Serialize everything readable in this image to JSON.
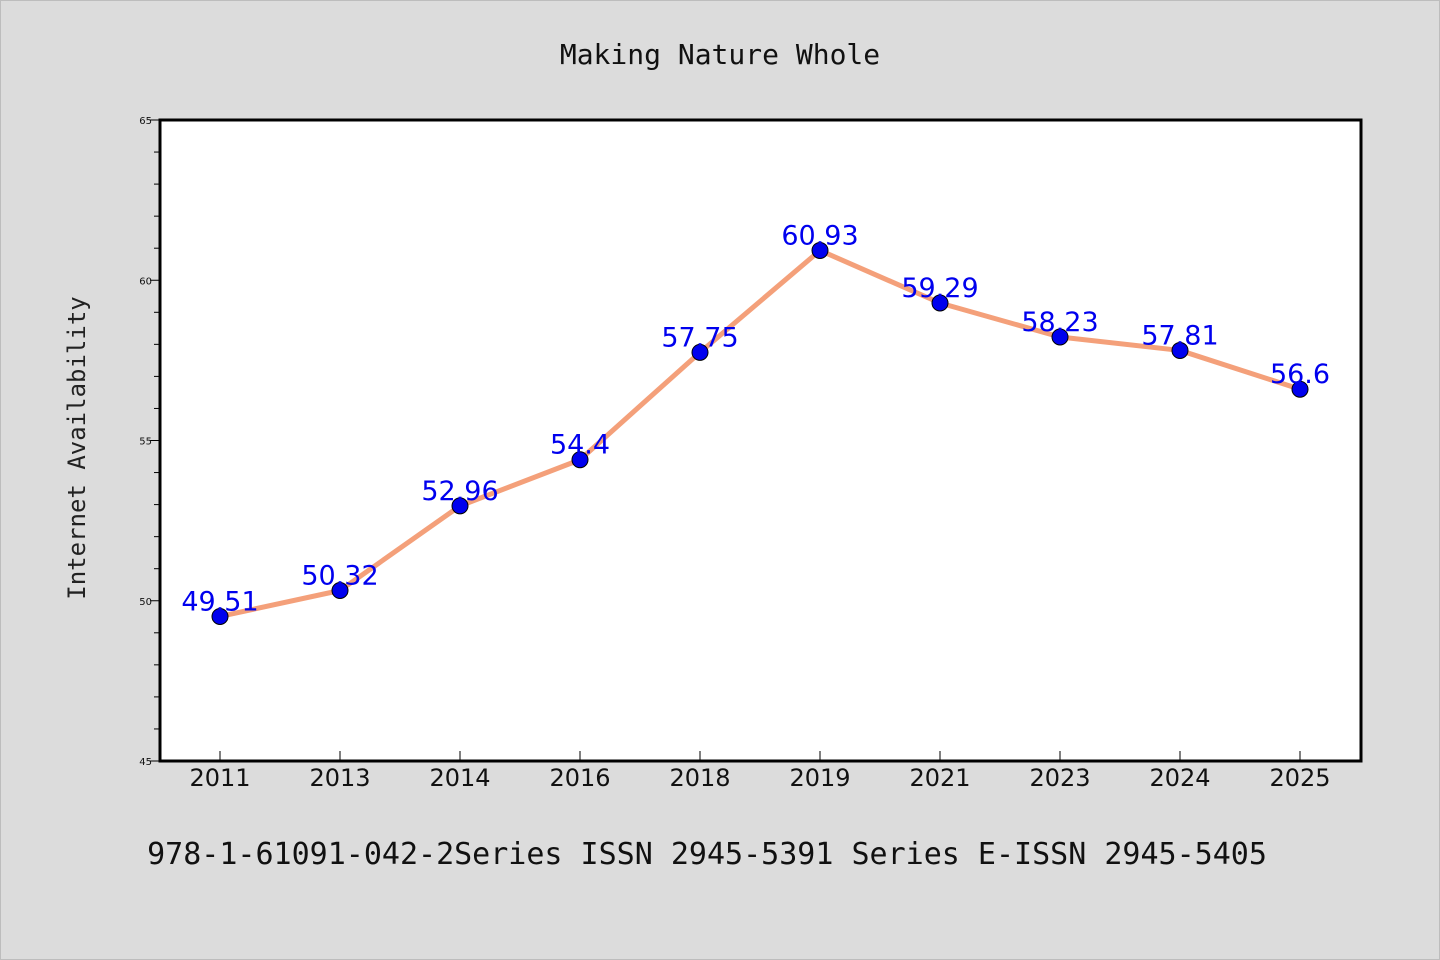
{
  "chart_data": {
    "type": "line",
    "title": "Making Nature Whole",
    "xlabel": "",
    "ylabel": "Internet Availability",
    "categories": [
      "2011",
      "2013",
      "2014",
      "2016",
      "2018",
      "2019",
      "2021",
      "2023",
      "2024",
      "2025"
    ],
    "series": [
      {
        "values": [
          49.51,
          50.32,
          52.96,
          54.4,
          57.75,
          60.93,
          59.29,
          58.23,
          57.81,
          56.6
        ],
        "data_labels": [
          "49.51",
          "50.32",
          "52.96",
          "54.4",
          "57.75",
          "60.93",
          "59.29",
          "58.23",
          "57.81",
          "56.6"
        ],
        "line_color": "#f4a07a",
        "marker_color": "#0000ee",
        "label_color": "#0000ee"
      }
    ],
    "ylim": [
      45,
      65
    ],
    "y_ticks": [
      45,
      50,
      55,
      60,
      65
    ],
    "y_tick_labels": [
      "45",
      "50",
      "55",
      "60",
      "65"
    ],
    "grid": false,
    "legend": "none",
    "footer": "978-1-61091-042-2Series ISSN 2945-5391 Series E-ISSN 2945-5405"
  }
}
